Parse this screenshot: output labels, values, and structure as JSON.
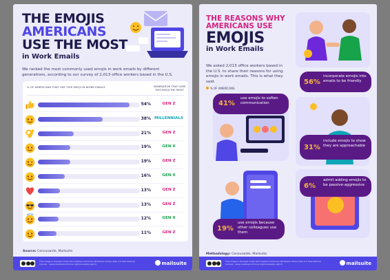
{
  "left": {
    "title_line1": "THE EMOJIS",
    "title_line2": "AMERICANS",
    "title_line3": "USE THE MOST",
    "title_line4": "in Work Emails",
    "intro": "We ranked the most commonly used emojis in work emails by different generations, according to our survey of 2,013 office workers based in the U.S.",
    "col_left": "% OF AMERICANS THAT USE THIS EMOJI IN WORK EMAILS",
    "col_right": "GENERATION THAT USES THIS EMOJI THE MOST",
    "source_label": "Source:",
    "source_text": "Censuswide, Mailsuite."
  },
  "right": {
    "title_line1": "THE REASONS WHY",
    "title_line2": "AMERICANS USE",
    "title_line3": "EMOJIS",
    "title_line4": "in Work Emails",
    "intro": "We asked 2,013 office workers based in the U.S. to share their reasons for using emojis in work emails. This is what they said.",
    "legend": "% OF AMERICANS",
    "method_label": "Methodology:",
    "method_text": "Censuswide, Mailsuite.",
    "reasons": [
      {
        "pct": "56%",
        "text": "incorporate emojis into emails to be friendly"
      },
      {
        "pct": "41%",
        "text": "use emojis to soften communication"
      },
      {
        "pct": "31%",
        "text": "include emojis to show they are approachable"
      },
      {
        "pct": "6%",
        "text": "admit adding emojis to be passive-aggressive"
      },
      {
        "pct": "19%",
        "text": "use emojis because other colleagues use them"
      }
    ]
  },
  "footer": {
    "license": "This image is licensed under the Creative Commons Attribution-Share Alike 4.0 International License - www.creativecommons.org/licenses/by-sa/4.0",
    "brand": "mailsuite"
  },
  "colors": {
    "gen_z": "#d6247f",
    "millennials": "#0ea5b7",
    "gen_x": "#16a34a",
    "accent": "#4f46e5",
    "pill": "#5a1a86"
  },
  "chart_data": {
    "type": "bar",
    "xlabel": "% OF AMERICANS THAT USE THIS EMOJI IN WORK EMAILS",
    "ylabel": "",
    "xlim": [
      0,
      60
    ],
    "categories": [
      "thumbs-up",
      "smiling-face",
      "ok-hand",
      "tears-of-joy",
      "winking-face",
      "rolling-on-floor-laughing",
      "red-heart",
      "sunglasses-face",
      "smiling-with-halo",
      "slightly-smiling-face"
    ],
    "values": [
      54,
      38,
      21,
      19,
      19,
      16,
      13,
      13,
      12,
      11
    ],
    "value_labels": [
      "54%",
      "38%",
      "21%",
      "19%",
      "19%",
      "16%",
      "13%",
      "13%",
      "12%",
      "11%"
    ],
    "generation": [
      "GEN Z",
      "MILLENNIALS",
      "GEN Z",
      "GEN X",
      "GEN Z",
      "GEN X",
      "GEN Z",
      "GEN Z",
      "GEN X",
      "GEN Z"
    ]
  }
}
